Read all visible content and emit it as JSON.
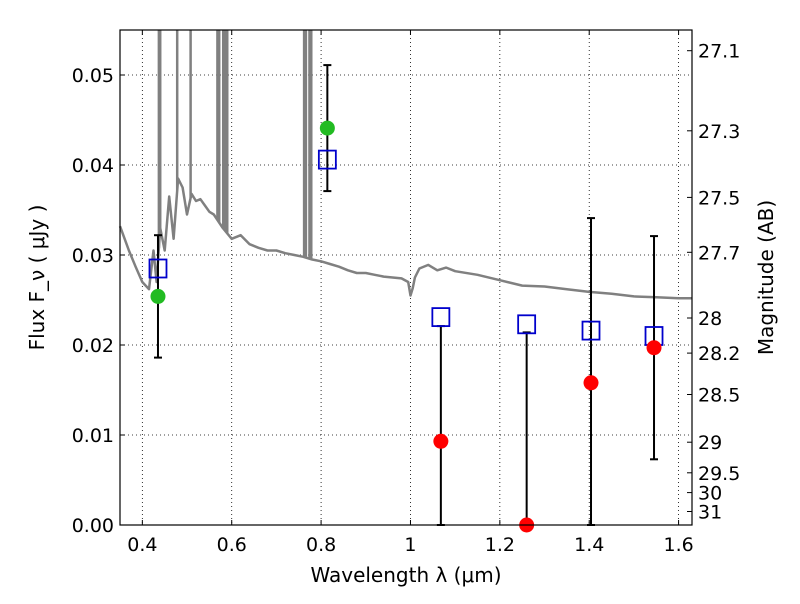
{
  "chart_data": {
    "type": "scatter",
    "xlabel": "Wavelength  λ (μm)",
    "ylabel": "Flux  F_ν  ( μJy )",
    "ylabel_right": "Magnitude (AB)",
    "xlim": [
      0.35,
      1.63
    ],
    "ylim": [
      0.0,
      0.055
    ],
    "x_ticks": [
      0.4,
      0.6,
      0.8,
      1.0,
      1.2,
      1.4,
      1.6
    ],
    "x_tick_labels": [
      "0.4",
      "0.6",
      "0.8",
      "1",
      "1.2",
      "1.4",
      "1.6"
    ],
    "y_ticks": [
      0.0,
      0.01,
      0.02,
      0.03,
      0.04,
      0.05
    ],
    "y_tick_labels": [
      "0.00",
      "0.01",
      "0.02",
      "0.03",
      "0.04",
      "0.05"
    ],
    "right_axis_ticks": [
      {
        "label": "27.1",
        "flux": 0.0527
      },
      {
        "label": "27.3",
        "flux": 0.0438
      },
      {
        "label": "27.5",
        "flux": 0.0364
      },
      {
        "label": "27.7",
        "flux": 0.0303
      },
      {
        "label": "28",
        "flux": 0.023
      },
      {
        "label": "28.2",
        "flux": 0.0191
      },
      {
        "label": "28.5",
        "flux": 0.0145
      },
      {
        "label": "29",
        "flux": 0.0092
      },
      {
        "label": "29.5",
        "flux": 0.0058
      },
      {
        "label": "30",
        "flux": 0.0036
      },
      {
        "label": "31",
        "flux": 0.0015
      }
    ],
    "grid": true,
    "colors": {
      "model": "#808080",
      "observed_green": "#22bb22",
      "observed_red": "#ff0000",
      "model_box": "#0000cc",
      "errorbar": "#000000"
    },
    "observed": [
      {
        "x": 0.435,
        "y": 0.0254,
        "yerr_low": 0.0186,
        "yerr_high": 0.0322,
        "color": "green"
      },
      {
        "x": 0.814,
        "y": 0.0441,
        "yerr_low": 0.0371,
        "yerr_high": 0.0511,
        "color": "green"
      },
      {
        "x": 1.068,
        "y": 0.0093,
        "yerr_low": 0.0,
        "yerr_high": 0.0221,
        "color": "red"
      },
      {
        "x": 1.26,
        "y": 0.0,
        "yerr_low": 0.0,
        "yerr_high": 0.0214,
        "color": "red"
      },
      {
        "x": 1.404,
        "y": 0.0158,
        "yerr_low": 0.0,
        "yerr_high": 0.0341,
        "color": "red"
      },
      {
        "x": 1.545,
        "y": 0.0197,
        "yerr_low": 0.0073,
        "yerr_high": 0.0321,
        "color": "red"
      }
    ],
    "model_points": [
      {
        "x": 0.435,
        "y": 0.0285
      },
      {
        "x": 0.814,
        "y": 0.0406
      },
      {
        "x": 1.068,
        "y": 0.0231
      },
      {
        "x": 1.26,
        "y": 0.0223
      },
      {
        "x": 1.404,
        "y": 0.0216
      },
      {
        "x": 1.545,
        "y": 0.021
      }
    ],
    "model_spectrum": {
      "x": [
        0.35,
        0.37,
        0.385,
        0.4,
        0.415,
        0.425,
        0.432,
        0.44,
        0.45,
        0.46,
        0.47,
        0.48,
        0.49,
        0.5,
        0.51,
        0.52,
        0.53,
        0.54,
        0.55,
        0.56,
        0.58,
        0.6,
        0.62,
        0.64,
        0.66,
        0.68,
        0.7,
        0.72,
        0.74,
        0.76,
        0.78,
        0.8,
        0.82,
        0.84,
        0.86,
        0.88,
        0.9,
        0.92,
        0.94,
        0.96,
        0.98,
        0.995,
        1.0,
        1.005,
        1.01,
        1.02,
        1.04,
        1.06,
        1.08,
        1.1,
        1.15,
        1.2,
        1.25,
        1.3,
        1.35,
        1.4,
        1.45,
        1.5,
        1.55,
        1.6,
        1.63
      ],
      "y": [
        0.0332,
        0.0305,
        0.0287,
        0.027,
        0.0262,
        0.0305,
        0.027,
        0.033,
        0.0305,
        0.0365,
        0.0318,
        0.0385,
        0.0375,
        0.0345,
        0.0368,
        0.036,
        0.0362,
        0.0355,
        0.0348,
        0.0345,
        0.033,
        0.0318,
        0.0322,
        0.0312,
        0.0308,
        0.0305,
        0.0305,
        0.0302,
        0.03,
        0.0298,
        0.0295,
        0.0293,
        0.029,
        0.0287,
        0.0283,
        0.028,
        0.028,
        0.0278,
        0.0276,
        0.0275,
        0.0274,
        0.027,
        0.0255,
        0.0263,
        0.0275,
        0.0285,
        0.0289,
        0.0283,
        0.0286,
        0.0282,
        0.0278,
        0.0272,
        0.0266,
        0.0265,
        0.0262,
        0.0259,
        0.0257,
        0.0254,
        0.0253,
        0.0252,
        0.0252
      ]
    },
    "emission_spikes": [
      0.437,
      0.44,
      0.478,
      0.508,
      0.568,
      0.572,
      0.581,
      0.585,
      0.59,
      0.762,
      0.766,
      0.774,
      0.778
    ]
  }
}
